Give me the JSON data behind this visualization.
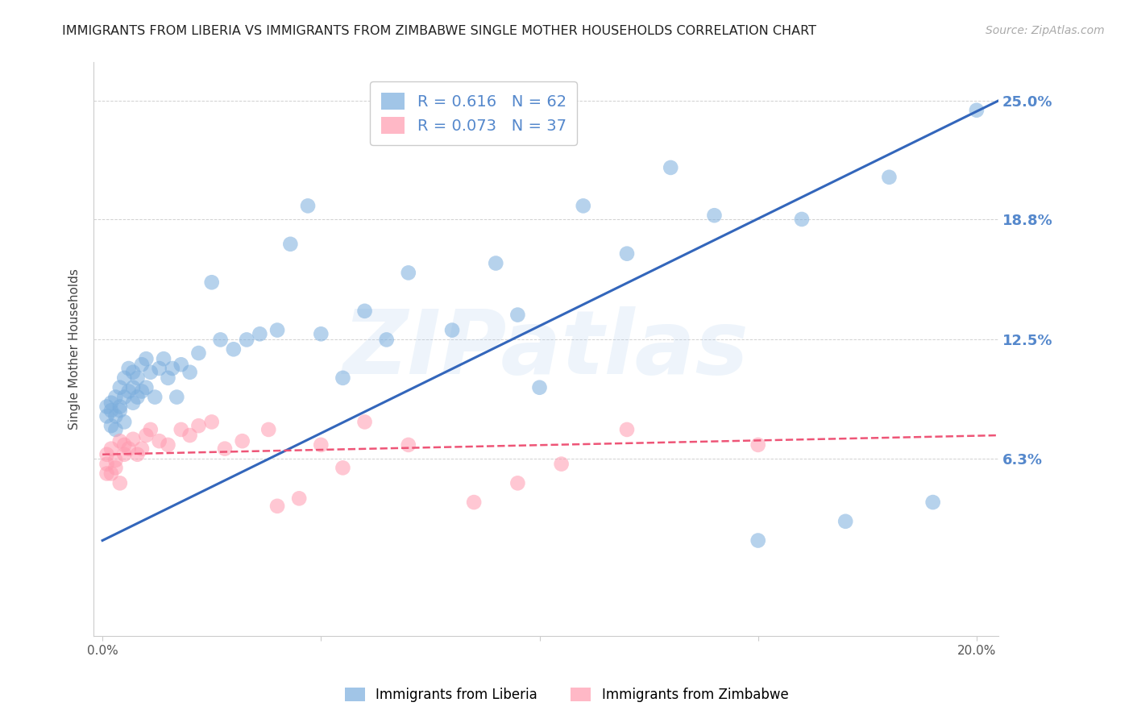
{
  "title": "IMMIGRANTS FROM LIBERIA VS IMMIGRANTS FROM ZIMBABWE SINGLE MOTHER HOUSEHOLDS CORRELATION CHART",
  "source": "Source: ZipAtlas.com",
  "ylabel": "Single Mother Households",
  "watermark": "ZIPatlas",
  "legend1_label": "Immigrants from Liberia",
  "legend2_label": "Immigrants from Zimbabwe",
  "R_liberia": 0.616,
  "N_liberia": 62,
  "R_zimbabwe": 0.073,
  "N_zimbabwe": 37,
  "xlim": [
    -0.002,
    0.205
  ],
  "ylim": [
    -0.03,
    0.27
  ],
  "yticks": [
    0.063,
    0.125,
    0.188,
    0.25
  ],
  "ytick_labels": [
    "6.3%",
    "12.5%",
    "18.8%",
    "25.0%"
  ],
  "color_liberia": "#7AADDD",
  "color_zimbabwe": "#FF9AAF",
  "color_liberia_line": "#3366BB",
  "color_zimbabwe_line": "#EE5577",
  "background_color": "#FFFFFF",
  "liberia_x": [
    0.001,
    0.001,
    0.002,
    0.002,
    0.002,
    0.003,
    0.003,
    0.003,
    0.004,
    0.004,
    0.004,
    0.005,
    0.005,
    0.005,
    0.006,
    0.006,
    0.007,
    0.007,
    0.007,
    0.008,
    0.008,
    0.009,
    0.009,
    0.01,
    0.01,
    0.011,
    0.012,
    0.013,
    0.014,
    0.015,
    0.016,
    0.017,
    0.018,
    0.02,
    0.022,
    0.025,
    0.027,
    0.03,
    0.033,
    0.036,
    0.04,
    0.043,
    0.047,
    0.05,
    0.055,
    0.06,
    0.065,
    0.07,
    0.08,
    0.09,
    0.095,
    0.1,
    0.11,
    0.12,
    0.13,
    0.14,
    0.15,
    0.16,
    0.17,
    0.18,
    0.19,
    0.2
  ],
  "liberia_y": [
    0.085,
    0.09,
    0.08,
    0.088,
    0.092,
    0.078,
    0.085,
    0.095,
    0.09,
    0.1,
    0.088,
    0.095,
    0.105,
    0.082,
    0.098,
    0.11,
    0.092,
    0.1,
    0.108,
    0.095,
    0.105,
    0.098,
    0.112,
    0.1,
    0.115,
    0.108,
    0.095,
    0.11,
    0.115,
    0.105,
    0.11,
    0.095,
    0.112,
    0.108,
    0.118,
    0.155,
    0.125,
    0.12,
    0.125,
    0.128,
    0.13,
    0.175,
    0.195,
    0.128,
    0.105,
    0.14,
    0.125,
    0.16,
    0.13,
    0.165,
    0.138,
    0.1,
    0.195,
    0.17,
    0.215,
    0.19,
    0.02,
    0.188,
    0.03,
    0.21,
    0.04,
    0.245
  ],
  "zimbabwe_x": [
    0.001,
    0.001,
    0.001,
    0.002,
    0.002,
    0.003,
    0.003,
    0.004,
    0.004,
    0.005,
    0.005,
    0.006,
    0.007,
    0.008,
    0.009,
    0.01,
    0.011,
    0.013,
    0.015,
    0.018,
    0.02,
    0.022,
    0.025,
    0.028,
    0.032,
    0.038,
    0.04,
    0.045,
    0.05,
    0.055,
    0.06,
    0.07,
    0.085,
    0.095,
    0.105,
    0.12,
    0.15
  ],
  "zimbabwe_y": [
    0.06,
    0.065,
    0.055,
    0.055,
    0.068,
    0.058,
    0.062,
    0.05,
    0.072,
    0.065,
    0.07,
    0.068,
    0.073,
    0.065,
    0.068,
    0.075,
    0.078,
    0.072,
    0.07,
    0.078,
    0.075,
    0.08,
    0.082,
    0.068,
    0.072,
    0.078,
    0.038,
    0.042,
    0.07,
    0.058,
    0.082,
    0.07,
    0.04,
    0.05,
    0.06,
    0.078,
    0.07
  ],
  "liberia_line_x": [
    0.0,
    0.205
  ],
  "liberia_line_y": [
    0.02,
    0.25
  ],
  "zimbabwe_line_x": [
    0.0,
    0.205
  ],
  "zimbabwe_line_y": [
    0.065,
    0.075
  ]
}
